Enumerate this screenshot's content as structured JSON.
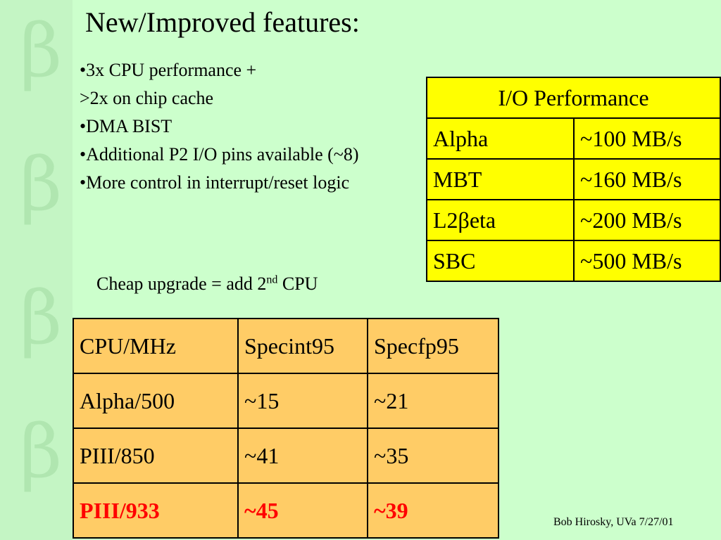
{
  "decor": {
    "glyph": "β"
  },
  "title": "New/Improved features:",
  "bullets": [
    "•3x CPU performance +",
    ">2x on chip cache",
    "•DMA BIST",
    "•Additional P2 I/O pins available (~8)",
    "•More control in interrupt/reset logic"
  ],
  "upgrade": {
    "text": "Cheap upgrade = add 2",
    "sup": "nd",
    "tail": " CPU"
  },
  "io_table": {
    "header": "I/O Performance",
    "rows": [
      {
        "name": "Alpha",
        "value": "~100 MB/s"
      },
      {
        "name": "MBT",
        "value": "~160 MB/s"
      },
      {
        "name": "L2βeta",
        "value": "~200 MB/s"
      },
      {
        "name": "SBC",
        "value": "~500 MB/s"
      }
    ],
    "color": "#ffff00"
  },
  "cpu_table": {
    "headers": [
      "CPU/MHz",
      "Specint95",
      "Specfp95"
    ],
    "rows": [
      [
        "Alpha/500",
        "~15",
        "~21"
      ],
      [
        "PIII/850",
        "~41",
        "~35"
      ],
      [
        "PIII/933",
        "~45",
        "~39"
      ]
    ],
    "color": "#ffcc66",
    "highlight_color": "#ff0000"
  },
  "footer": "Bob Hirosky, UVa 7/27/01"
}
